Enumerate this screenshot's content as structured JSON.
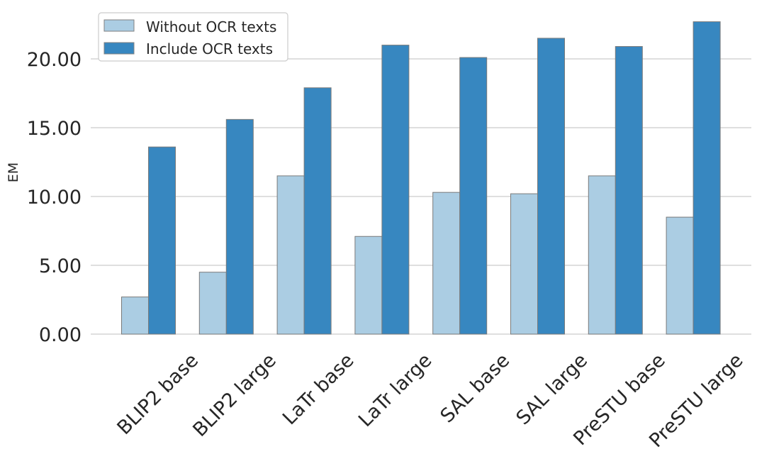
{
  "chart_data": {
    "type": "bar",
    "title": "",
    "xlabel": "",
    "ylabel": "EM",
    "ylim": [
      0,
      23
    ],
    "yticks": [
      0,
      5,
      10,
      15,
      20
    ],
    "ytick_labels": [
      "0.00",
      "5.00",
      "10.00",
      "15.00",
      "20.00"
    ],
    "grid": true,
    "legend_position": "top-left",
    "categories": [
      "BLIP2 base",
      "BLIP2 large",
      "LaTr base",
      "LaTr large",
      "SAL base",
      "SAL large",
      "PreSTU base",
      "PreSTU large"
    ],
    "series": [
      {
        "name": "Without OCR texts",
        "color": "#abcde3",
        "values": [
          2.7,
          4.5,
          11.5,
          7.1,
          10.3,
          10.2,
          11.5,
          8.5
        ]
      },
      {
        "name": "Include OCR texts",
        "color": "#3787c0",
        "values": [
          13.6,
          15.6,
          17.9,
          21.0,
          20.1,
          21.5,
          20.9,
          22.7
        ]
      }
    ]
  }
}
